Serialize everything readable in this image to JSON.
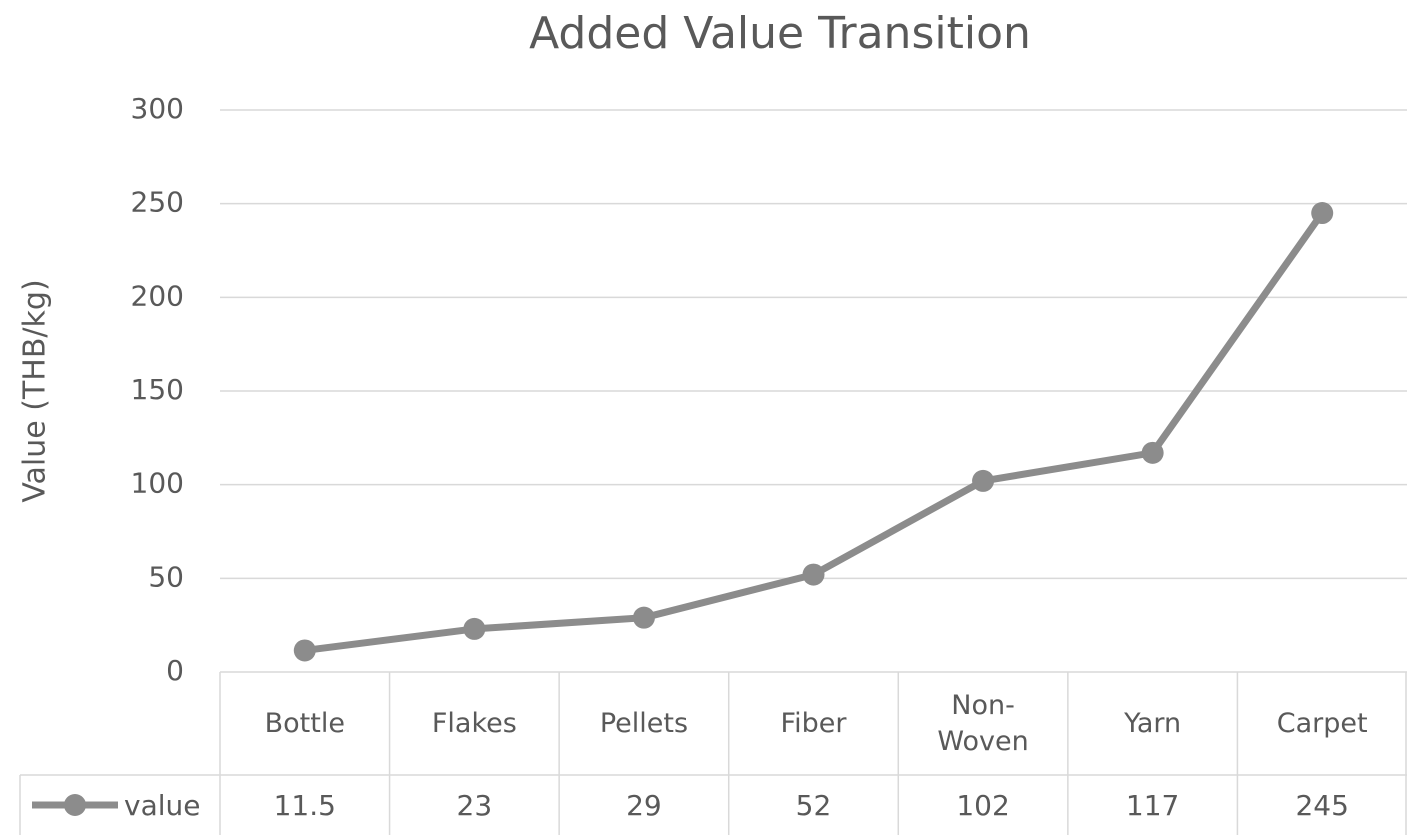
{
  "chart_data": {
    "type": "line",
    "title": "Added Value Transition",
    "y_label": "Value (THB/kg)",
    "categories": [
      "Bottle",
      "Flakes",
      "Pellets",
      "Fiber",
      "Non-Woven",
      "Yarn",
      "Carpet"
    ],
    "series": [
      {
        "name": "value",
        "color": "#8c8c8c",
        "values": [
          11.5,
          23,
          29,
          52,
          102,
          117,
          245
        ]
      }
    ],
    "ylim": [
      0,
      300
    ],
    "yticks": [
      0,
      50,
      100,
      150,
      200,
      250,
      300
    ],
    "grid": true,
    "data_table": true
  }
}
